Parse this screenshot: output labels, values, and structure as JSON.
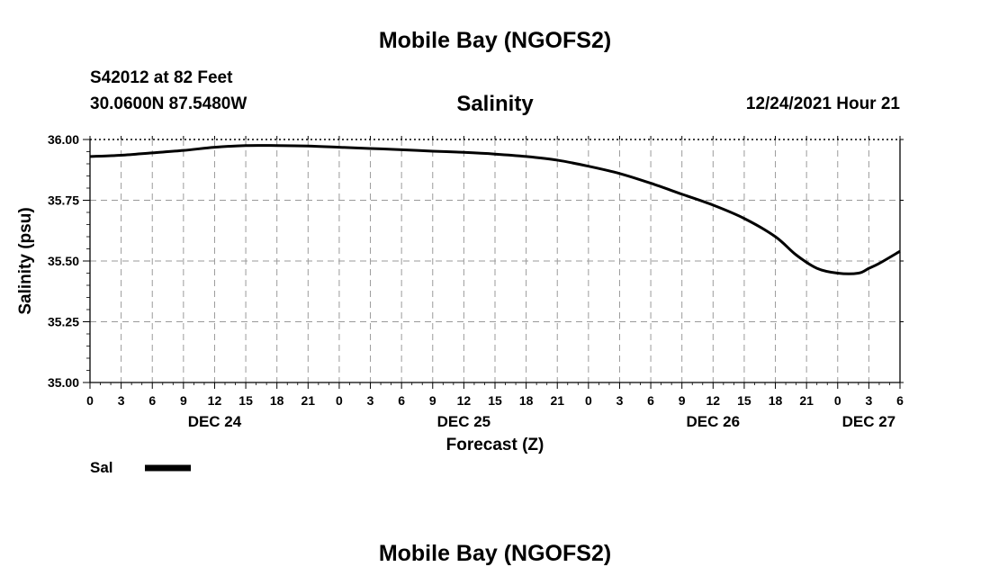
{
  "page": {
    "title_top": "Mobile Bay (NGOFS2)",
    "title_bottom": "Mobile Bay (NGOFS2)",
    "station_line": "S42012 at 82 Feet",
    "coords_line": "30.0600N  87.5480W",
    "date_line": "12/24/2021 Hour 21"
  },
  "chart_data": {
    "type": "line",
    "title": "Salinity",
    "xlabel": "Forecast (Z)",
    "ylabel": "Salinity (psu)",
    "ylim": [
      35.0,
      36.0
    ],
    "yticks": [
      "36.00",
      "35.75",
      "35.50",
      "35.25",
      "35.00"
    ],
    "ytick_values": [
      36.0,
      35.75,
      35.5,
      35.25,
      35.0
    ],
    "x_hour_range": [
      0,
      78
    ],
    "xtick_labels": [
      "0",
      "3",
      "6",
      "9",
      "12",
      "15",
      "18",
      "21",
      "0",
      "3",
      "6",
      "9",
      "12",
      "15",
      "18",
      "21",
      "0",
      "3",
      "6",
      "9",
      "12",
      "15",
      "18",
      "21",
      "0",
      "3",
      "6"
    ],
    "date_labels": [
      {
        "label": "DEC 24",
        "hour": 12
      },
      {
        "label": "DEC 25",
        "hour": 36
      },
      {
        "label": "DEC 26",
        "hour": 60
      },
      {
        "label": "DEC 27",
        "hour": 75
      }
    ],
    "grid": true,
    "legend_position": "bottom-left",
    "series": [
      {
        "name": "Sal",
        "color": "#000000",
        "x": [
          0,
          3,
          6,
          9,
          12,
          15,
          18,
          21,
          24,
          27,
          30,
          33,
          36,
          39,
          42,
          45,
          48,
          51,
          54,
          57,
          60,
          63,
          66,
          68,
          70,
          72,
          74,
          75,
          76,
          78
        ],
        "values": [
          35.93,
          35.935,
          35.945,
          35.955,
          35.968,
          35.975,
          35.975,
          35.973,
          35.968,
          35.963,
          35.958,
          35.952,
          35.947,
          35.94,
          35.93,
          35.915,
          35.89,
          35.86,
          35.82,
          35.775,
          35.73,
          35.675,
          35.6,
          35.525,
          35.47,
          35.45,
          35.45,
          35.47,
          35.49,
          35.54
        ]
      }
    ]
  }
}
